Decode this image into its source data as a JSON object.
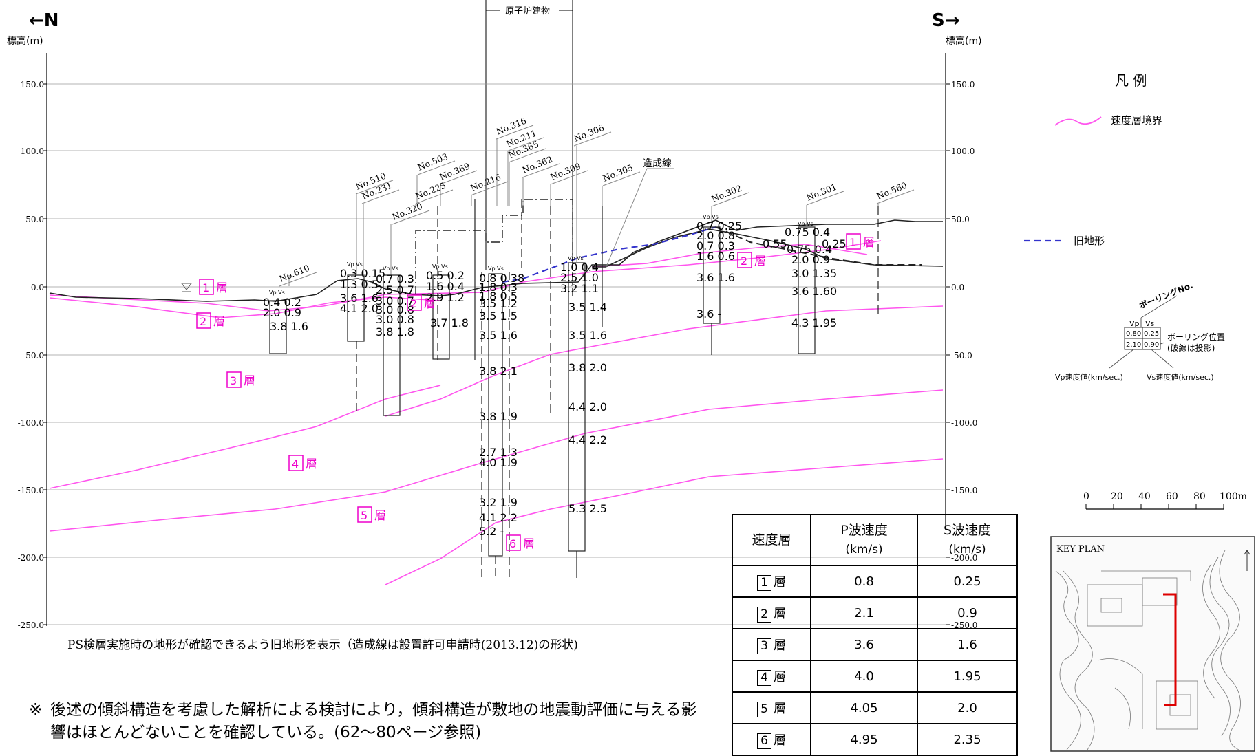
{
  "header": {
    "north": "←N",
    "south": "S→",
    "elev_label_left": "標高(m)",
    "elev_label_right": "標高(m)",
    "reactor": "原子炉建物"
  },
  "axis": {
    "ticks": [
      "150.0",
      "100.0",
      "50.0",
      "0.0",
      "-50.0",
      "-100.0",
      "-150.0",
      "-200.0",
      "-250.0"
    ]
  },
  "boreholes": [
    "No.610",
    "No.510",
    "No.231",
    "No.320",
    "No.503",
    "No.225",
    "No.369",
    "No.216",
    "No.316",
    "No.211",
    "No.365",
    "No.362",
    "No.309",
    "No.306",
    "No.305",
    "No.302",
    "No.301",
    "No.560"
  ],
  "labels": {
    "zoseisen": "造成線"
  },
  "layers": [
    {
      "num": "1",
      "mark": "層"
    },
    {
      "num": "2",
      "mark": "層"
    },
    {
      "num": "3",
      "mark": "層"
    },
    {
      "num": "4",
      "mark": "層"
    },
    {
      "num": "5",
      "mark": "層"
    },
    {
      "num": "6",
      "mark": "層"
    }
  ],
  "velocity_readings": {
    "no610": [
      "0.4 0.2",
      "2.0 0.9",
      "3.8 1.6"
    ],
    "no510": [
      "0.3 0.15",
      "1.3 0.5",
      "3.6 1.6",
      "4.1 2.0"
    ],
    "no320": [
      "0.7 0.3",
      "2.5 0.7",
      "3.0 0.7",
      "3.0 0.8",
      "3.0 0.8",
      "3.8 1.8"
    ],
    "no369": [
      "0.5 0.2",
      "1.6 0.4",
      "2.9 1.2",
      "3.7 1.8"
    ],
    "no316": [
      "0.8 0.38",
      "1.8 0.3",
      "1.8 0.5",
      "3.5 1.2",
      "3.5 1.5",
      "3.5 1.6",
      "3.8 2.1",
      "3.8 1.9",
      "2.7 1.3",
      "4.0 1.9",
      "3.2 1.9",
      "4.1 2.2",
      "5.2 -"
    ],
    "no306": [
      "1.0 0.4",
      "2.5 1.0",
      "3.2 1.1",
      "3.5 1.4",
      "3.5 1.6",
      "3.8 2.0",
      "4.4 2.0",
      "4.4 2.2",
      "5.3 2.5"
    ],
    "no302": [
      "0.7 0.25",
      "2.0 0.8",
      "0.7 0.3",
      "1.6 0.6",
      "3.6 1.6",
      "3.6 -"
    ],
    "no301": [
      "0.75 0.4",
      "0.75 0.4",
      "2.0 0.9",
      "3.0 1.35",
      "3.6 1.60",
      "4.3 1.95"
    ],
    "misc_055": "0.55",
    "misc_025": "0.25"
  },
  "vpvs_header": "Vp Vs",
  "legend": {
    "title": "凡 例",
    "velocity_boundary": "速度層境界",
    "old_terrain": "旧地形",
    "boring_no": "ボーリングNo.",
    "boring_vp": "Vp",
    "boring_vs": "Vs",
    "boring_v1": "0.80",
    "boring_v2": "0.25",
    "boring_v3": "2.10",
    "boring_v4": "0.90",
    "boring_pos": "ボーリング位置",
    "boring_pos_note": "(破線は投影)",
    "vp_desc": "Vp速度値(km/sec.)",
    "vs_desc": "Vs速度値(km/sec.)"
  },
  "scale_bar": {
    "ticks": [
      "0",
      "20",
      "40",
      "60",
      "80",
      "100m"
    ]
  },
  "keyplan": {
    "title": "KEY PLAN"
  },
  "caption": "PS検層実施時の地形が確認できるよう旧地形を表示（造成線は設置許可申請時(2013.12)の形状)",
  "note": {
    "mark": "※",
    "text": "後述の傾斜構造を考慮した解析による検討により，傾斜構造が敷地の地震動評価に与える影響はほとんどないことを確認している。(62〜80ページ参照)"
  },
  "table": {
    "headers": [
      "速度層",
      "P波速度",
      "(km/s)",
      "S波速度",
      "(km/s)"
    ],
    "rows": [
      {
        "layer": "1",
        "mark": "層",
        "p": "0.8",
        "s": "0.25"
      },
      {
        "layer": "2",
        "mark": "層",
        "p": "2.1",
        "s": "0.9"
      },
      {
        "layer": "3",
        "mark": "層",
        "p": "3.6",
        "s": "1.6"
      },
      {
        "layer": "4",
        "mark": "層",
        "p": "4.0",
        "s": "1.95"
      },
      {
        "layer": "5",
        "mark": "層",
        "p": "4.05",
        "s": "2.0"
      },
      {
        "layer": "6",
        "mark": "層",
        "p": "4.95",
        "s": "2.35"
      }
    ]
  },
  "colors": {
    "boundary": "#ff55ee",
    "old_terrain": "#3333cc",
    "grid": "#9a9a9a",
    "layer_label": "#ee00cc",
    "keyplan_route": "#dd0000"
  }
}
